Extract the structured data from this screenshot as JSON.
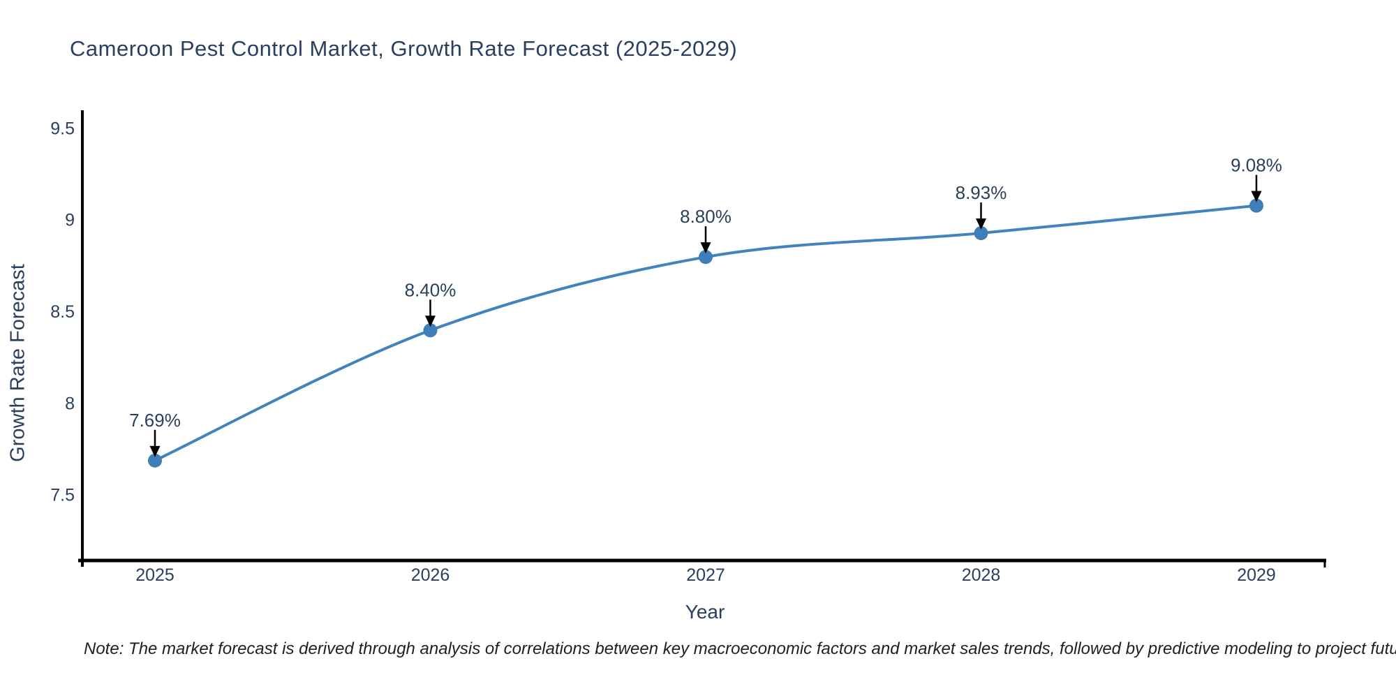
{
  "title": "Cameroon Pest Control Market, Growth Rate Forecast (2025-2029)",
  "note": "Note: The market forecast is derived through analysis of correlations between key macroeconomic factors and market sales trends, followed by predictive modeling to project future sales",
  "chart_data": {
    "type": "line",
    "title": "Cameroon Pest Control Market, Growth Rate Forecast (2025-2029)",
    "xlabel": "Year",
    "ylabel": "Growth Rate Forecast",
    "categories": [
      "2025",
      "2026",
      "2027",
      "2028",
      "2029"
    ],
    "values": [
      7.69,
      8.4,
      8.8,
      8.93,
      9.08
    ],
    "point_labels": [
      "7.69%",
      "8.40%",
      "8.80%",
      "8.93%",
      "9.08%"
    ],
    "yticks": [
      "7.5",
      "8",
      "8.5",
      "9",
      "9.5"
    ],
    "ytick_values": [
      7.5,
      8.0,
      8.5,
      9.0,
      9.5
    ],
    "ylim": [
      7.145,
      9.6
    ],
    "grid": false,
    "legend": "none",
    "line_shape": "spline",
    "line_color": "#4383bd",
    "marker_color": "#3f7eb8",
    "annotation_arrow_color": "#000000",
    "axis_color": "#000000",
    "text_color": "#2a3f5f"
  }
}
